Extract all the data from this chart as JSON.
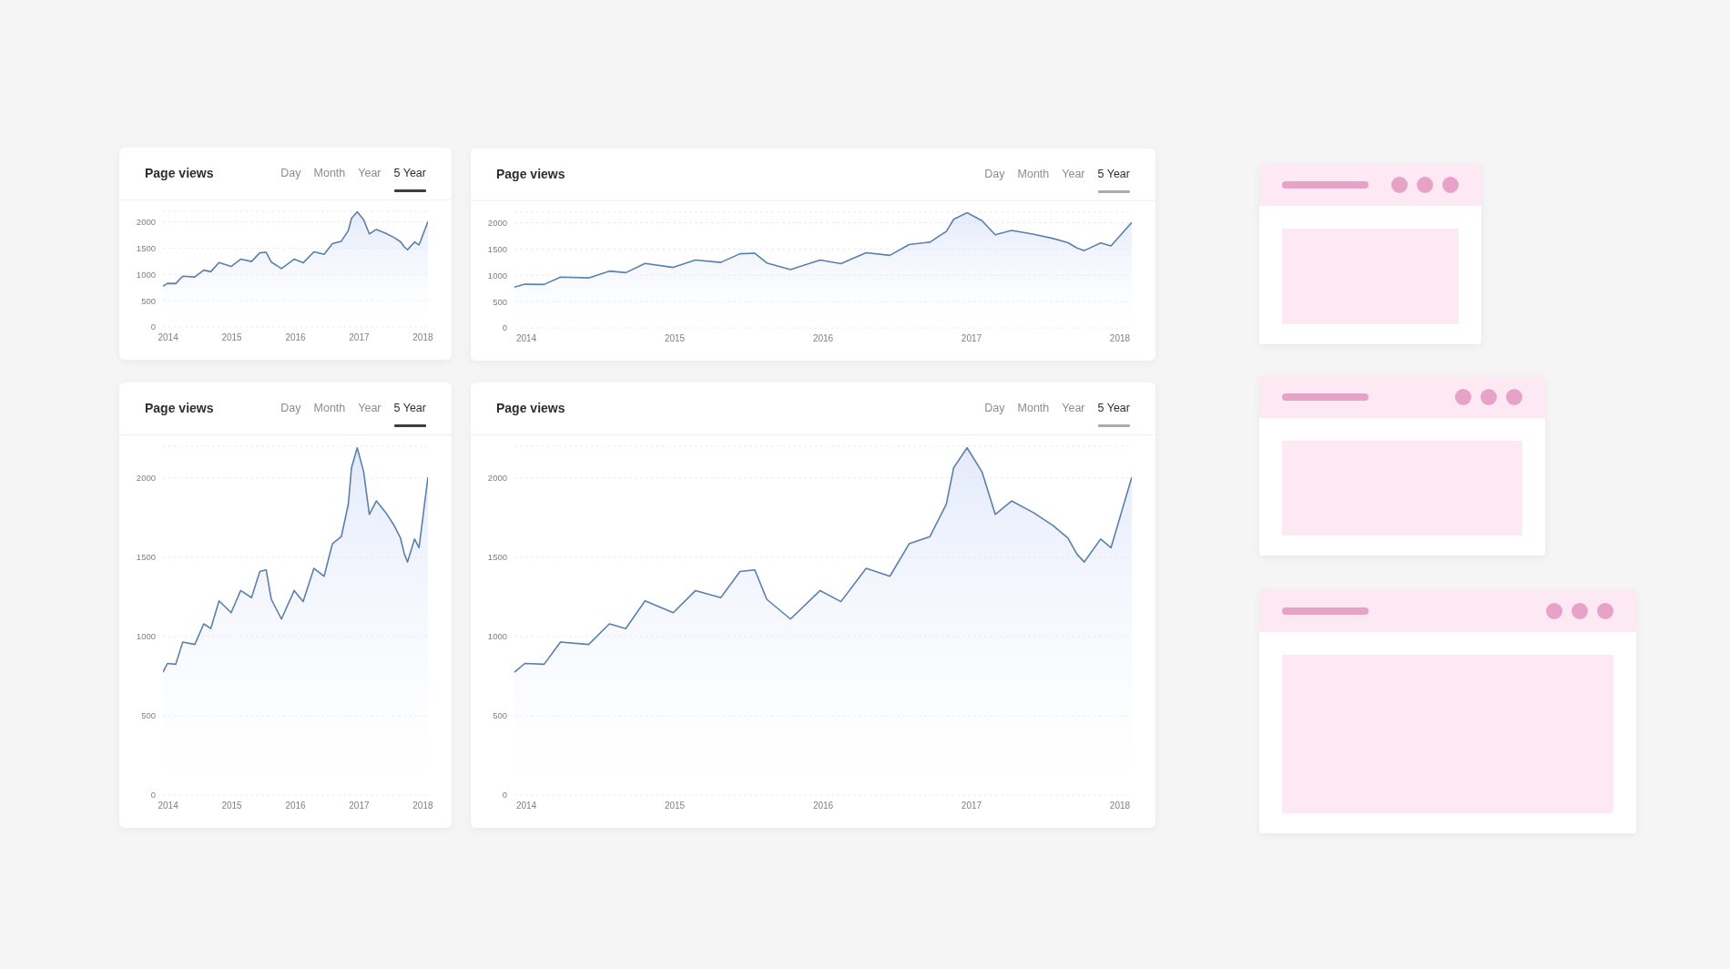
{
  "chart_data": [
    {
      "type": "area",
      "title": "Page views",
      "annotations": [
        "Day",
        "Month",
        "Year",
        "5 Year"
      ],
      "x": [
        2013.92,
        2013.99,
        2014.12,
        2014.23,
        2014.42,
        2014.56,
        2014.67,
        2014.8,
        2014.99,
        2015.14,
        2015.31,
        2015.44,
        2015.54,
        2015.62,
        2015.78,
        2015.98,
        2016.12,
        2016.29,
        2016.45,
        2016.58,
        2016.72,
        2016.83,
        2016.88,
        2016.97,
        2017.07,
        2017.16,
        2017.27,
        2017.42,
        2017.55,
        2017.65,
        2017.71,
        2017.76,
        2017.87,
        2017.94,
        2018.08
      ],
      "xlim": [
        2013.92,
        2018.08
      ],
      "xticks": [
        2014,
        2015,
        2016,
        2017,
        2018
      ],
      "ylim": [
        0,
        2200
      ],
      "yticks": [
        0,
        500,
        1000,
        1500,
        2000
      ],
      "grid": "y",
      "series": [
        {
          "color": "#5a80ad",
          "values": [
            775,
            830,
            825,
            965,
            950,
            1080,
            1050,
            1225,
            1150,
            1290,
            1245,
            1410,
            1420,
            1235,
            1110,
            1290,
            1220,
            1430,
            1380,
            1585,
            1630,
            1835,
            2065,
            2190,
            2040,
            1770,
            1855,
            1780,
            1700,
            1620,
            1520,
            1470,
            1615,
            1560,
            2005
          ]
        }
      ]
    },
    {
      "type": "area",
      "title": "Page views",
      "annotations": [
        "Day",
        "Month",
        "Year",
        "5 Year"
      ],
      "x": [
        2013.92,
        2013.99,
        2014.12,
        2014.23,
        2014.42,
        2014.56,
        2014.67,
        2014.8,
        2014.99,
        2015.14,
        2015.31,
        2015.44,
        2015.54,
        2015.62,
        2015.78,
        2015.98,
        2016.12,
        2016.29,
        2016.45,
        2016.58,
        2016.72,
        2016.83,
        2016.88,
        2016.97,
        2017.07,
        2017.16,
        2017.27,
        2017.42,
        2017.55,
        2017.65,
        2017.71,
        2017.76,
        2017.87,
        2017.94,
        2018.08
      ],
      "xlim": [
        2013.92,
        2018.08
      ],
      "xticks": [
        2014,
        2015,
        2016,
        2017,
        2018
      ],
      "ylim": [
        0,
        2200
      ],
      "yticks": [
        0,
        500,
        1000,
        1500,
        2000
      ],
      "grid": "y",
      "series": [
        {
          "color": "#5a80ad",
          "values": [
            775,
            830,
            825,
            965,
            950,
            1080,
            1050,
            1225,
            1150,
            1290,
            1245,
            1410,
            1420,
            1235,
            1110,
            1290,
            1220,
            1430,
            1380,
            1585,
            1630,
            1835,
            2065,
            2190,
            2040,
            1770,
            1855,
            1780,
            1700,
            1620,
            1520,
            1470,
            1615,
            1560,
            2005
          ]
        }
      ]
    },
    {
      "type": "area",
      "title": "Page views",
      "annotations": [
        "Day",
        "Month",
        "Year",
        "5 Year"
      ],
      "x": [
        2013.92,
        2013.99,
        2014.12,
        2014.23,
        2014.42,
        2014.56,
        2014.67,
        2014.8,
        2014.99,
        2015.14,
        2015.31,
        2015.44,
        2015.54,
        2015.62,
        2015.78,
        2015.98,
        2016.12,
        2016.29,
        2016.45,
        2016.58,
        2016.72,
        2016.83,
        2016.88,
        2016.97,
        2017.07,
        2017.16,
        2017.27,
        2017.42,
        2017.55,
        2017.65,
        2017.71,
        2017.76,
        2017.87,
        2017.94,
        2018.08
      ],
      "xlim": [
        2013.92,
        2018.08
      ],
      "xticks": [
        2014,
        2015,
        2016,
        2017,
        2018
      ],
      "ylim": [
        0,
        2200
      ],
      "yticks": [
        0,
        500,
        1000,
        1500,
        2000
      ],
      "grid": "y",
      "series": [
        {
          "color": "#5a80ad",
          "values": [
            775,
            830,
            825,
            965,
            950,
            1080,
            1050,
            1225,
            1150,
            1290,
            1245,
            1410,
            1420,
            1235,
            1110,
            1290,
            1220,
            1430,
            1380,
            1585,
            1630,
            1835,
            2065,
            2190,
            2040,
            1770,
            1855,
            1780,
            1700,
            1620,
            1520,
            1470,
            1615,
            1560,
            2005
          ]
        }
      ]
    },
    {
      "type": "area",
      "title": "Page views",
      "annotations": [
        "Day",
        "Month",
        "Year",
        "5 Year"
      ],
      "x": [
        2013.92,
        2013.99,
        2014.12,
        2014.23,
        2014.42,
        2014.56,
        2014.67,
        2014.8,
        2014.99,
        2015.14,
        2015.31,
        2015.44,
        2015.54,
        2015.62,
        2015.78,
        2015.98,
        2016.12,
        2016.29,
        2016.45,
        2016.58,
        2016.72,
        2016.83,
        2016.88,
        2016.97,
        2017.07,
        2017.16,
        2017.27,
        2017.42,
        2017.55,
        2017.65,
        2017.71,
        2017.76,
        2017.87,
        2017.94,
        2018.08
      ],
      "xlim": [
        2013.92,
        2018.08
      ],
      "xticks": [
        2014,
        2015,
        2016,
        2017,
        2018
      ],
      "ylim": [
        0,
        2200
      ],
      "yticks": [
        0,
        500,
        1000,
        1500,
        2000
      ],
      "grid": "y",
      "series": [
        {
          "color": "#5a80ad",
          "values": [
            775,
            830,
            825,
            965,
            950,
            1080,
            1050,
            1225,
            1150,
            1290,
            1245,
            1410,
            1420,
            1235,
            1110,
            1290,
            1220,
            1430,
            1380,
            1585,
            1630,
            1835,
            2065,
            2190,
            2040,
            1770,
            1855,
            1780,
            1700,
            1620,
            1520,
            1470,
            1615,
            1560,
            2005
          ]
        }
      ]
    }
  ]
}
